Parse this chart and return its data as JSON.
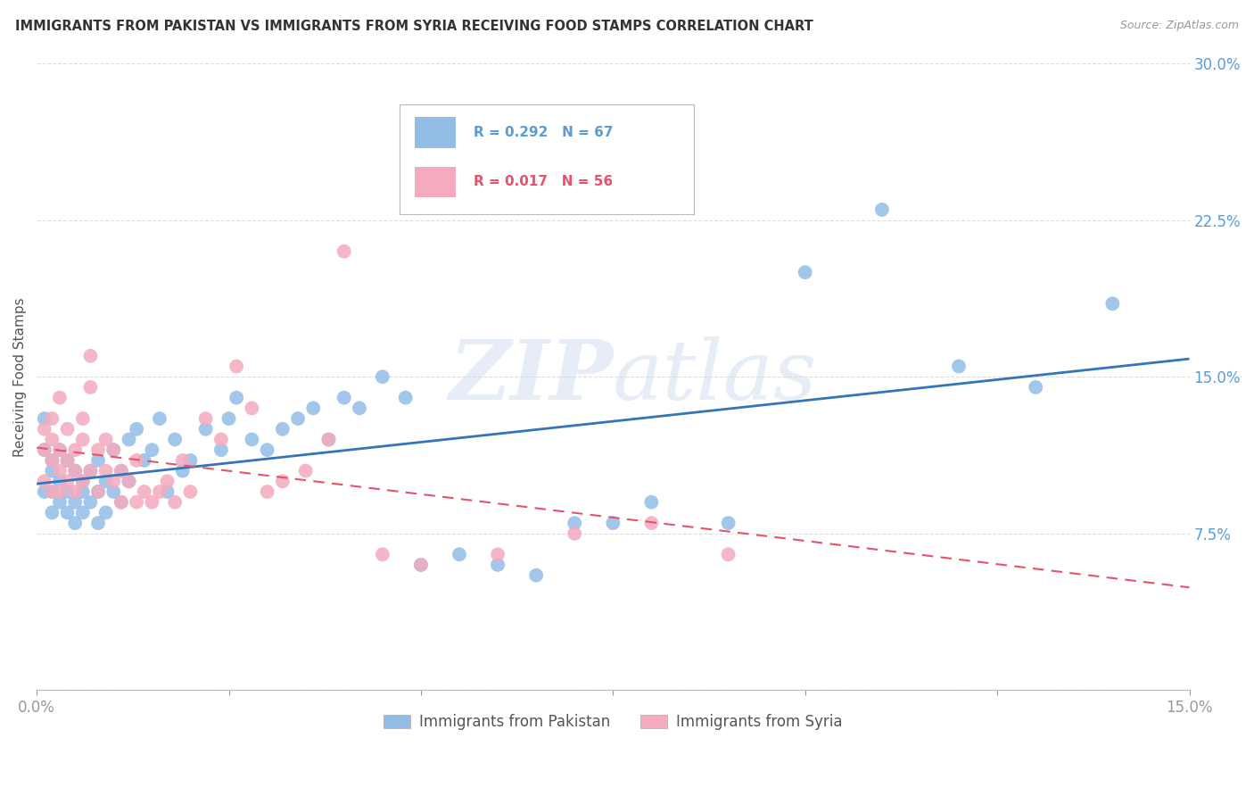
{
  "title": "IMMIGRANTS FROM PAKISTAN VS IMMIGRANTS FROM SYRIA RECEIVING FOOD STAMPS CORRELATION CHART",
  "source": "Source: ZipAtlas.com",
  "ylabel_label": "Receiving Food Stamps",
  "xlim": [
    0.0,
    0.15
  ],
  "ylim": [
    0.0,
    0.3
  ],
  "yticks": [
    0.0,
    0.075,
    0.15,
    0.225,
    0.3
  ],
  "yticklabels": [
    "",
    "7.5%",
    "15.0%",
    "22.5%",
    "30.0%"
  ],
  "xticks": [
    0.0,
    0.025,
    0.05,
    0.075,
    0.1,
    0.125,
    0.15
  ],
  "xticklabels": [
    "0.0%",
    "",
    "",
    "",
    "",
    "",
    "15.0%"
  ],
  "R_pakistan": 0.292,
  "N_pakistan": 67,
  "R_syria": 0.017,
  "N_syria": 56,
  "color_pakistan": "#92BDE7",
  "color_syria": "#F4ABBE",
  "line_color_pakistan": "#3574B8",
  "line_color_syria": "#E8526A",
  "legend_label_pakistan": "Immigrants from Pakistan",
  "legend_label_syria": "Immigrants from Syria",
  "watermark": "ZIPatlas",
  "pakistan_x": [
    0.001,
    0.001,
    0.001,
    0.002,
    0.002,
    0.002,
    0.002,
    0.003,
    0.003,
    0.003,
    0.004,
    0.004,
    0.004,
    0.005,
    0.005,
    0.005,
    0.006,
    0.006,
    0.006,
    0.007,
    0.007,
    0.008,
    0.008,
    0.008,
    0.009,
    0.009,
    0.01,
    0.01,
    0.011,
    0.011,
    0.012,
    0.012,
    0.013,
    0.014,
    0.015,
    0.016,
    0.017,
    0.018,
    0.019,
    0.02,
    0.022,
    0.024,
    0.025,
    0.026,
    0.028,
    0.03,
    0.032,
    0.034,
    0.036,
    0.038,
    0.04,
    0.042,
    0.045,
    0.048,
    0.05,
    0.055,
    0.06,
    0.065,
    0.07,
    0.075,
    0.08,
    0.09,
    0.1,
    0.11,
    0.12,
    0.13,
    0.14
  ],
  "pakistan_y": [
    0.115,
    0.13,
    0.095,
    0.11,
    0.085,
    0.095,
    0.105,
    0.09,
    0.1,
    0.115,
    0.085,
    0.095,
    0.11,
    0.08,
    0.09,
    0.105,
    0.095,
    0.085,
    0.1,
    0.09,
    0.105,
    0.08,
    0.095,
    0.11,
    0.085,
    0.1,
    0.095,
    0.115,
    0.09,
    0.105,
    0.1,
    0.12,
    0.125,
    0.11,
    0.115,
    0.13,
    0.095,
    0.12,
    0.105,
    0.11,
    0.125,
    0.115,
    0.13,
    0.14,
    0.12,
    0.115,
    0.125,
    0.13,
    0.135,
    0.12,
    0.14,
    0.135,
    0.15,
    0.14,
    0.06,
    0.065,
    0.06,
    0.055,
    0.08,
    0.08,
    0.09,
    0.08,
    0.2,
    0.23,
    0.155,
    0.145,
    0.185
  ],
  "syria_x": [
    0.001,
    0.001,
    0.001,
    0.002,
    0.002,
    0.002,
    0.002,
    0.003,
    0.003,
    0.003,
    0.003,
    0.004,
    0.004,
    0.004,
    0.005,
    0.005,
    0.005,
    0.006,
    0.006,
    0.006,
    0.007,
    0.007,
    0.007,
    0.008,
    0.008,
    0.009,
    0.009,
    0.01,
    0.01,
    0.011,
    0.011,
    0.012,
    0.013,
    0.013,
    0.014,
    0.015,
    0.016,
    0.017,
    0.018,
    0.019,
    0.02,
    0.022,
    0.024,
    0.026,
    0.028,
    0.03,
    0.032,
    0.035,
    0.038,
    0.04,
    0.045,
    0.05,
    0.06,
    0.07,
    0.08,
    0.09
  ],
  "syria_y": [
    0.125,
    0.115,
    0.1,
    0.12,
    0.13,
    0.11,
    0.095,
    0.105,
    0.115,
    0.095,
    0.14,
    0.1,
    0.11,
    0.125,
    0.095,
    0.105,
    0.115,
    0.1,
    0.12,
    0.13,
    0.145,
    0.16,
    0.105,
    0.115,
    0.095,
    0.105,
    0.12,
    0.1,
    0.115,
    0.09,
    0.105,
    0.1,
    0.11,
    0.09,
    0.095,
    0.09,
    0.095,
    0.1,
    0.09,
    0.11,
    0.095,
    0.13,
    0.12,
    0.155,
    0.135,
    0.095,
    0.1,
    0.105,
    0.12,
    0.21,
    0.065,
    0.06,
    0.065,
    0.075,
    0.08,
    0.065
  ]
}
